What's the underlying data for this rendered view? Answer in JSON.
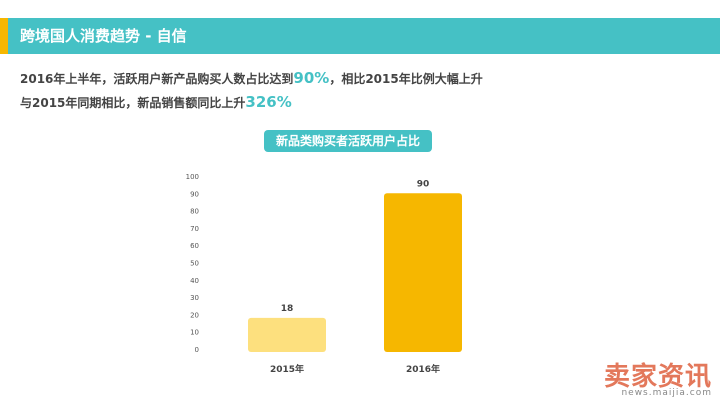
{
  "header": {
    "title": "跨境国人消费趋势 - 自信"
  },
  "summary": {
    "line1_prefix": "2016年上半年，活跃用户新产品购买人数占比达到",
    "line1_highlight": "90%",
    "line1_suffix": "，相比2015年比例大幅上升",
    "line2_prefix": "与2015年同期相比，新品销售额同比上升",
    "line2_highlight": "326%"
  },
  "chart_data": {
    "type": "bar",
    "title": "新品类购买者活跃用户占比",
    "categories": [
      "2015年",
      "2016年"
    ],
    "values": [
      18,
      90
    ],
    "data_labels": [
      "18",
      "90"
    ],
    "bar_colors": [
      "#fde07e",
      "#f6b700"
    ],
    "ylim": [
      0,
      100
    ],
    "yticks": [
      0,
      10,
      20,
      30,
      40,
      50,
      60,
      70,
      80,
      90,
      100
    ],
    "grid": false,
    "xlabel": "",
    "ylabel": ""
  },
  "watermark": {
    "brand": "卖家资讯",
    "site": "news.maijia.com"
  },
  "colors": {
    "accent": "#45c1c5",
    "highlight_bar": "#f6b700",
    "stripe": "#f6b700"
  }
}
